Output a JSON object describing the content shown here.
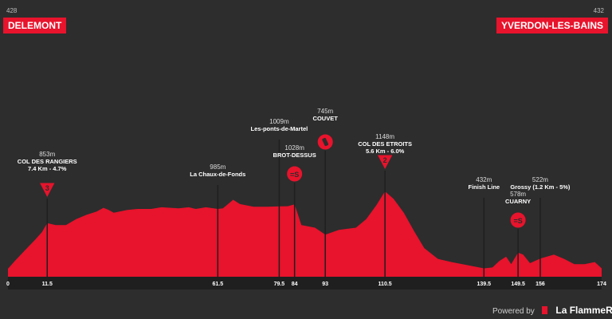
{
  "start": {
    "elevation": "428",
    "name": "DELEMONT"
  },
  "finish": {
    "elevation": "432",
    "name": "YVERDON-LES-BAINS"
  },
  "footer": {
    "powered_by": "Powered by",
    "brand": "La FlammeRouge"
  },
  "colors": {
    "background": "#2d2d2d",
    "profile": "#e8132c",
    "text": "#ffffff",
    "muted": "#bdbdbd"
  },
  "chart_data": {
    "type": "area",
    "x_ticks": [
      "0",
      "11.5",
      "61.5",
      "79.5",
      "84",
      "93",
      "110.5",
      "139.5",
      "149.5",
      "156",
      "174"
    ],
    "xlim": [
      0,
      174
    ],
    "ylim": [
      300,
      1200
    ],
    "profile": [
      [
        0,
        428
      ],
      [
        2,
        500
      ],
      [
        5,
        600
      ],
      [
        8,
        700
      ],
      [
        10,
        770
      ],
      [
        11.5,
        853
      ],
      [
        14,
        835
      ],
      [
        17,
        835
      ],
      [
        20,
        890
      ],
      [
        23,
        930
      ],
      [
        26,
        960
      ],
      [
        28,
        995
      ],
      [
        29.5,
        975
      ],
      [
        31,
        950
      ],
      [
        35,
        975
      ],
      [
        38,
        985
      ],
      [
        42,
        985
      ],
      [
        45,
        1000
      ],
      [
        50,
        990
      ],
      [
        53,
        1000
      ],
      [
        55,
        985
      ],
      [
        58,
        1000
      ],
      [
        61.5,
        985
      ],
      [
        63,
        990
      ],
      [
        66,
        1070
      ],
      [
        68,
        1030
      ],
      [
        72,
        1005
      ],
      [
        76,
        1005
      ],
      [
        79.5,
        1009
      ],
      [
        82,
        1010
      ],
      [
        84,
        1028
      ],
      [
        86,
        835
      ],
      [
        90,
        810
      ],
      [
        93,
        745
      ],
      [
        97,
        790
      ],
      [
        102,
        810
      ],
      [
        105,
        890
      ],
      [
        108,
        1020
      ],
      [
        110.5,
        1148
      ],
      [
        113,
        1080
      ],
      [
        116,
        950
      ],
      [
        119,
        780
      ],
      [
        122,
        620
      ],
      [
        126,
        520
      ],
      [
        130,
        490
      ],
      [
        135,
        460
      ],
      [
        139.5,
        432
      ],
      [
        142,
        440
      ],
      [
        144,
        500
      ],
      [
        146,
        540
      ],
      [
        147.5,
        470
      ],
      [
        149.5,
        578
      ],
      [
        151,
        560
      ],
      [
        153,
        480
      ],
      [
        156,
        522
      ],
      [
        160,
        560
      ],
      [
        163,
        520
      ],
      [
        166,
        470
      ],
      [
        169,
        470
      ],
      [
        172,
        490
      ],
      [
        174,
        432
      ]
    ],
    "points": [
      {
        "km": 11.5,
        "elevation": "853m",
        "name": "COL DES RANGIERS",
        "detail": "7.4 Km - 4.7%",
        "icon": "climb-cat-3-icon",
        "symbol": "3"
      },
      {
        "km": 61.5,
        "elevation": "985m",
        "name": "La Chaux-de-Fonds",
        "detail": "",
        "icon": "",
        "symbol": ""
      },
      {
        "km": 79.5,
        "elevation": "1009m",
        "name": "Les-ponts-de-Martel",
        "detail": "",
        "icon": "",
        "symbol": ""
      },
      {
        "km": 84,
        "elevation": "1028m",
        "name": "BROT-DESSUS",
        "detail": "",
        "icon": "sprint-icon",
        "symbol": "=S"
      },
      {
        "km": 93,
        "elevation": "745m",
        "name": "COUVET",
        "detail": "",
        "icon": "feed-bottle-icon",
        "symbol": ""
      },
      {
        "km": 110.5,
        "elevation": "1148m",
        "name": "COL DES ETROITS",
        "detail": "5.6 Km - 6.0%",
        "icon": "climb-cat-2-icon",
        "symbol": "2"
      },
      {
        "km": 139.5,
        "elevation": "432m",
        "name": "Finish Line",
        "detail": "",
        "icon": "",
        "symbol": ""
      },
      {
        "km": 149.5,
        "elevation": "578m",
        "name": "CUARNY",
        "detail": "",
        "icon": "sprint-icon",
        "symbol": "=S"
      },
      {
        "km": 156,
        "elevation": "522m",
        "name": "Grossy (1.2 Km - 5%)",
        "detail": "",
        "icon": "",
        "symbol": ""
      }
    ]
  }
}
